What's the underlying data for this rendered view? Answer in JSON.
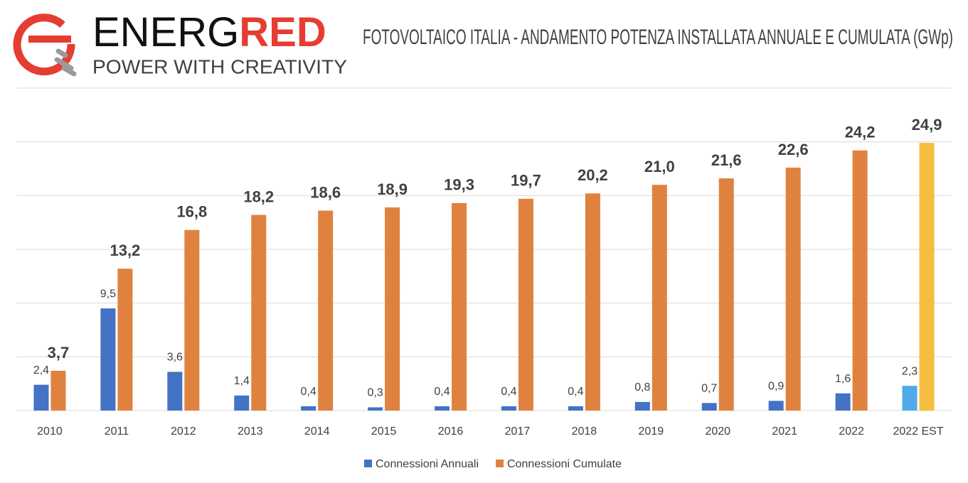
{
  "logo": {
    "name_dark": "ENERG",
    "name_red": "RED",
    "tagline": "POWER WITH CREATIVITY"
  },
  "chart_data": {
    "type": "bar",
    "title": "FOTOVOLTAICO ITALIA - ANDAMENTO POTENZA INSTALLATA ANNUALE E CUMULATA  (GWp)",
    "categories": [
      "2010",
      "2011",
      "2012",
      "2013",
      "2014",
      "2015",
      "2016",
      "2017",
      "2018",
      "2019",
      "2020",
      "2021",
      "2022",
      "2022 EST"
    ],
    "series": [
      {
        "name": "Connessioni Annuali",
        "color": "#4472c4",
        "colors": [
          "#4472c4",
          "#4472c4",
          "#4472c4",
          "#4472c4",
          "#4472c4",
          "#4472c4",
          "#4472c4",
          "#4472c4",
          "#4472c4",
          "#4472c4",
          "#4472c4",
          "#4472c4",
          "#4472c4",
          "#4faae8"
        ],
        "values": [
          2.4,
          9.5,
          3.6,
          1.4,
          0.4,
          0.3,
          0.4,
          0.4,
          0.4,
          0.8,
          0.7,
          0.9,
          1.6,
          2.3
        ],
        "value_labels": [
          "2,4",
          "9,5",
          "3,6",
          "1,4",
          "0,4",
          "0,3",
          "0,4",
          "0,4",
          "0,4",
          "0,8",
          "0,7",
          "0,9",
          "1,6",
          "2,3"
        ]
      },
      {
        "name": "Connessioni Cumulate",
        "color": "#e0823f",
        "colors": [
          "#e0823f",
          "#e0823f",
          "#e0823f",
          "#e0823f",
          "#e0823f",
          "#e0823f",
          "#e0823f",
          "#e0823f",
          "#e0823f",
          "#e0823f",
          "#e0823f",
          "#e0823f",
          "#e0823f",
          "#f4be3e"
        ],
        "values": [
          3.7,
          13.2,
          16.8,
          18.2,
          18.6,
          18.9,
          19.3,
          19.7,
          20.2,
          21.0,
          21.6,
          22.6,
          24.2,
          24.9
        ],
        "value_labels": [
          "3,7",
          "13,2",
          "16,8",
          "18,2",
          "18,6",
          "18,9",
          "19,3",
          "19,7",
          "20,2",
          "21,0",
          "21,6",
          "22,6",
          "24,2",
          "24,9"
        ]
      }
    ],
    "ylim": [
      0,
      30
    ],
    "yticks": [
      0,
      5,
      10,
      15,
      20,
      25,
      30
    ],
    "grid": true
  }
}
